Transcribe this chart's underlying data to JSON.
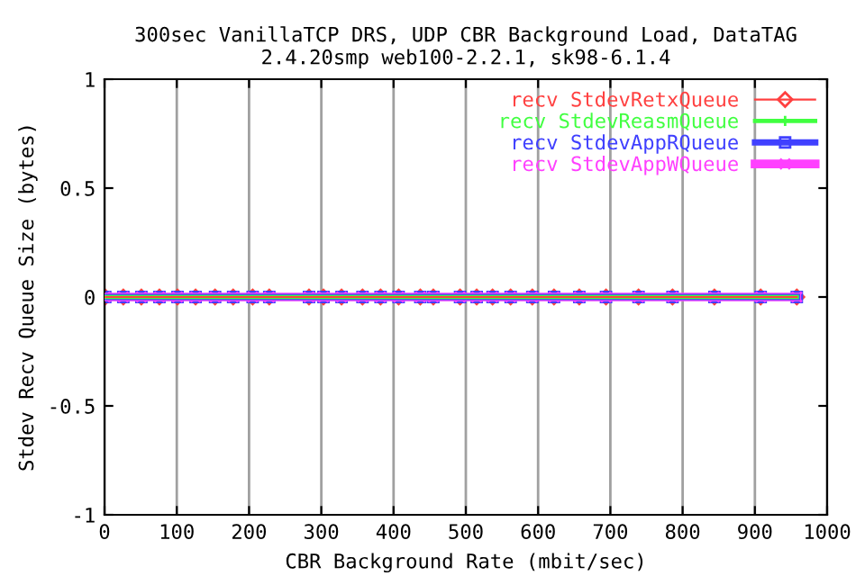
{
  "chart_data": {
    "type": "line",
    "title": "300sec VanillaTCP DRS, UDP CBR Background Load, DataTAG\n2.4.20smp web100-2.2.1, sk98-6.1.4",
    "xlabel": "CBR Background Rate (mbit/sec)",
    "ylabel": "Stdev Recv Queue Size (bytes)",
    "x": [
      1,
      26,
      51,
      76,
      101,
      126,
      153,
      178,
      205,
      228,
      283,
      303,
      328,
      357,
      382,
      407,
      437,
      455,
      492,
      515,
      537,
      562,
      592,
      622,
      657,
      694,
      739,
      786,
      844,
      908,
      958
    ],
    "series": [
      {
        "name": "recv StdevRetxQueue",
        "color": "#ff4040",
        "marker": "diamond",
        "values": [
          0,
          0,
          0,
          0,
          0,
          0,
          0,
          0,
          0,
          0,
          0,
          0,
          0,
          0,
          0,
          0,
          0,
          0,
          0,
          0,
          0,
          0,
          0,
          0,
          0,
          0,
          0,
          0,
          0,
          0,
          0
        ]
      },
      {
        "name": "recv StdevReasmQueue",
        "color": "#40ff40",
        "marker": "plus",
        "values": [
          0,
          0,
          0,
          0,
          0,
          0,
          0,
          0,
          0,
          0,
          0,
          0,
          0,
          0,
          0,
          0,
          0,
          0,
          0,
          0,
          0,
          0,
          0,
          0,
          0,
          0,
          0,
          0,
          0,
          0,
          0
        ]
      },
      {
        "name": "recv StdevAppRQueue",
        "color": "#4040ff",
        "marker": "square",
        "values": [
          0,
          0,
          0,
          0,
          0,
          0,
          0,
          0,
          0,
          0,
          0,
          0,
          0,
          0,
          0,
          0,
          0,
          0,
          0,
          0,
          0,
          0,
          0,
          0,
          0,
          0,
          0,
          0,
          0,
          0,
          0
        ]
      },
      {
        "name": "recv StdevAppWQueue",
        "color": "#ff40ff",
        "marker": "cross",
        "values": [
          0,
          0,
          0,
          0,
          0,
          0,
          0,
          0,
          0,
          0,
          0,
          0,
          0,
          0,
          0,
          0,
          0,
          0,
          0,
          0,
          0,
          0,
          0,
          0,
          0,
          0,
          0,
          0,
          0,
          0,
          0
        ]
      }
    ],
    "xlim": [
      0,
      1000
    ],
    "xticks": [
      0,
      100,
      200,
      300,
      400,
      500,
      600,
      700,
      800,
      900,
      1000
    ],
    "ylim": [
      -1,
      1
    ],
    "yticks": [
      -1,
      -0.5,
      0,
      0.5,
      1
    ],
    "grid": "x",
    "legend": "top right",
    "line_style": "solid"
  }
}
